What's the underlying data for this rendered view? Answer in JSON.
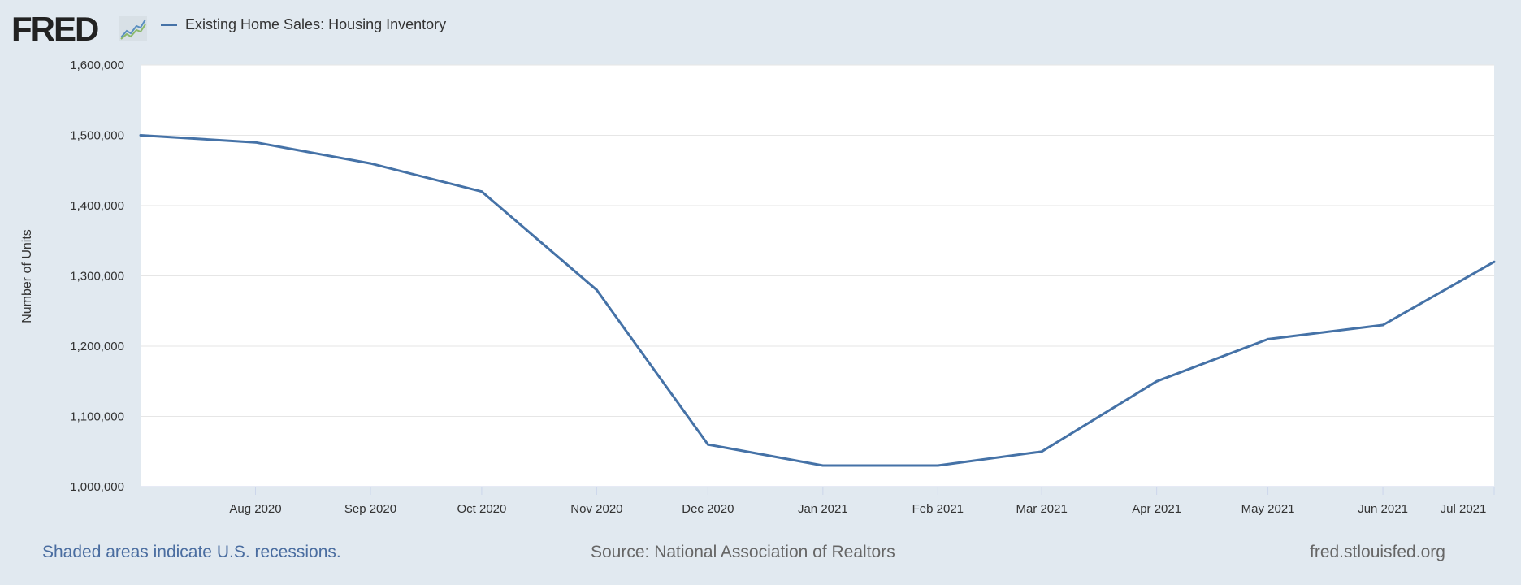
{
  "header": {
    "logo_text": "FRED",
    "series_label": "Existing Home Sales: Housing Inventory",
    "series_color": "#4572a7"
  },
  "footer": {
    "recession_note": "Shaded areas indicate U.S. recessions.",
    "source": "Source: National Association of Realtors",
    "url": "fred.stlouisfed.org"
  },
  "chart_data": {
    "type": "line",
    "title": "Existing Home Sales: Housing Inventory",
    "xlabel": "",
    "ylabel": "Number of Units",
    "ylim": [
      1000000,
      1600000
    ],
    "yticks": [
      1000000,
      1100000,
      1200000,
      1300000,
      1400000,
      1500000,
      1600000
    ],
    "ytick_labels": [
      "1,000,000",
      "1,100,000",
      "1,200,000",
      "1,300,000",
      "1,400,000",
      "1,500,000",
      "1,600,000"
    ],
    "grid": true,
    "x": [
      "2020-07-01",
      "2020-08-01",
      "2020-09-01",
      "2020-10-01",
      "2020-11-01",
      "2020-12-01",
      "2021-01-01",
      "2021-02-01",
      "2021-03-01",
      "2021-04-01",
      "2021-05-01",
      "2021-06-01",
      "2021-07-01"
    ],
    "xlim": [
      "2020-07-01",
      "2021-07-01"
    ],
    "xtick_dates": [
      "2020-08-01",
      "2020-09-01",
      "2020-10-01",
      "2020-11-01",
      "2020-12-01",
      "2021-01-01",
      "2021-02-01",
      "2021-03-01",
      "2021-04-01",
      "2021-05-01",
      "2021-06-01",
      "2021-07-01"
    ],
    "xtick_labels": [
      "Aug 2020",
      "Sep 2020",
      "Oct 2020",
      "Nov 2020",
      "Dec 2020",
      "Jan 2021",
      "Feb 2021",
      "Mar 2021",
      "Apr 2021",
      "May 2021",
      "Jun 2021",
      "Jul 2021"
    ],
    "series": [
      {
        "name": "Existing Home Sales: Housing Inventory",
        "values": [
          1500000,
          1490000,
          1460000,
          1420000,
          1280000,
          1060000,
          1030000,
          1030000,
          1050000,
          1150000,
          1210000,
          1230000,
          1320000
        ]
      }
    ],
    "legend": "top-left"
  }
}
